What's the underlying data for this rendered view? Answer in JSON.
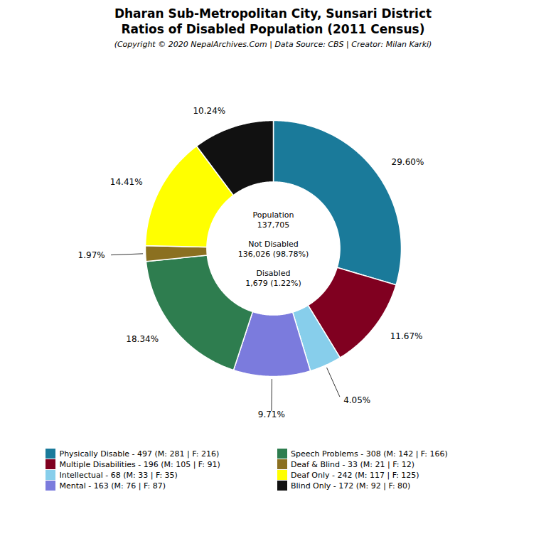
{
  "chart_data": {
    "type": "donut",
    "title": "Dharan Sub-Metropolitan City, Sunsari District\nRatios of Disabled Population (2011 Census)",
    "subtitle": "(Copyright © 2020 NepalArchives.Com | Data Source: CBS | Creator: Milan Karki)",
    "categories": [
      "Physically Disable - 497 (M: 281 | F: 216)",
      "Multiple Disabilities - 196 (M: 105 | F: 91)",
      "Intellectual - 68 (M: 33 | F: 35)",
      "Mental - 163 (M: 76 | F: 87)",
      "Speech Problems - 308 (M: 142 | F: 166)",
      "Deaf & Blind - 33 (M: 21 | F: 12)",
      "Deaf Only - 242 (M: 117 | F: 125)",
      "Blind Only - 172 (M: 92 | F: 80)"
    ],
    "values": [
      29.6,
      11.67,
      4.05,
      9.71,
      18.34,
      1.97,
      14.41,
      10.24
    ],
    "value_labels": [
      "29.60%",
      "11.67%",
      "4.05%",
      "9.71%",
      "18.34%",
      "1.97%",
      "14.41%",
      "10.24%"
    ],
    "colors": [
      "#1a7a9a",
      "#800020",
      "#87ceeb",
      "#7b7bdd",
      "#2e7d4f",
      "#8b7020",
      "#ffff00",
      "#111111"
    ],
    "data_labels": true,
    "legend": "bottom",
    "annotations": [
      {
        "text": "Population\n137,705\n\nNot Disabled\n136,026 (98.78%)\n\nDisabled\n1,679 (1.22%)"
      }
    ]
  }
}
